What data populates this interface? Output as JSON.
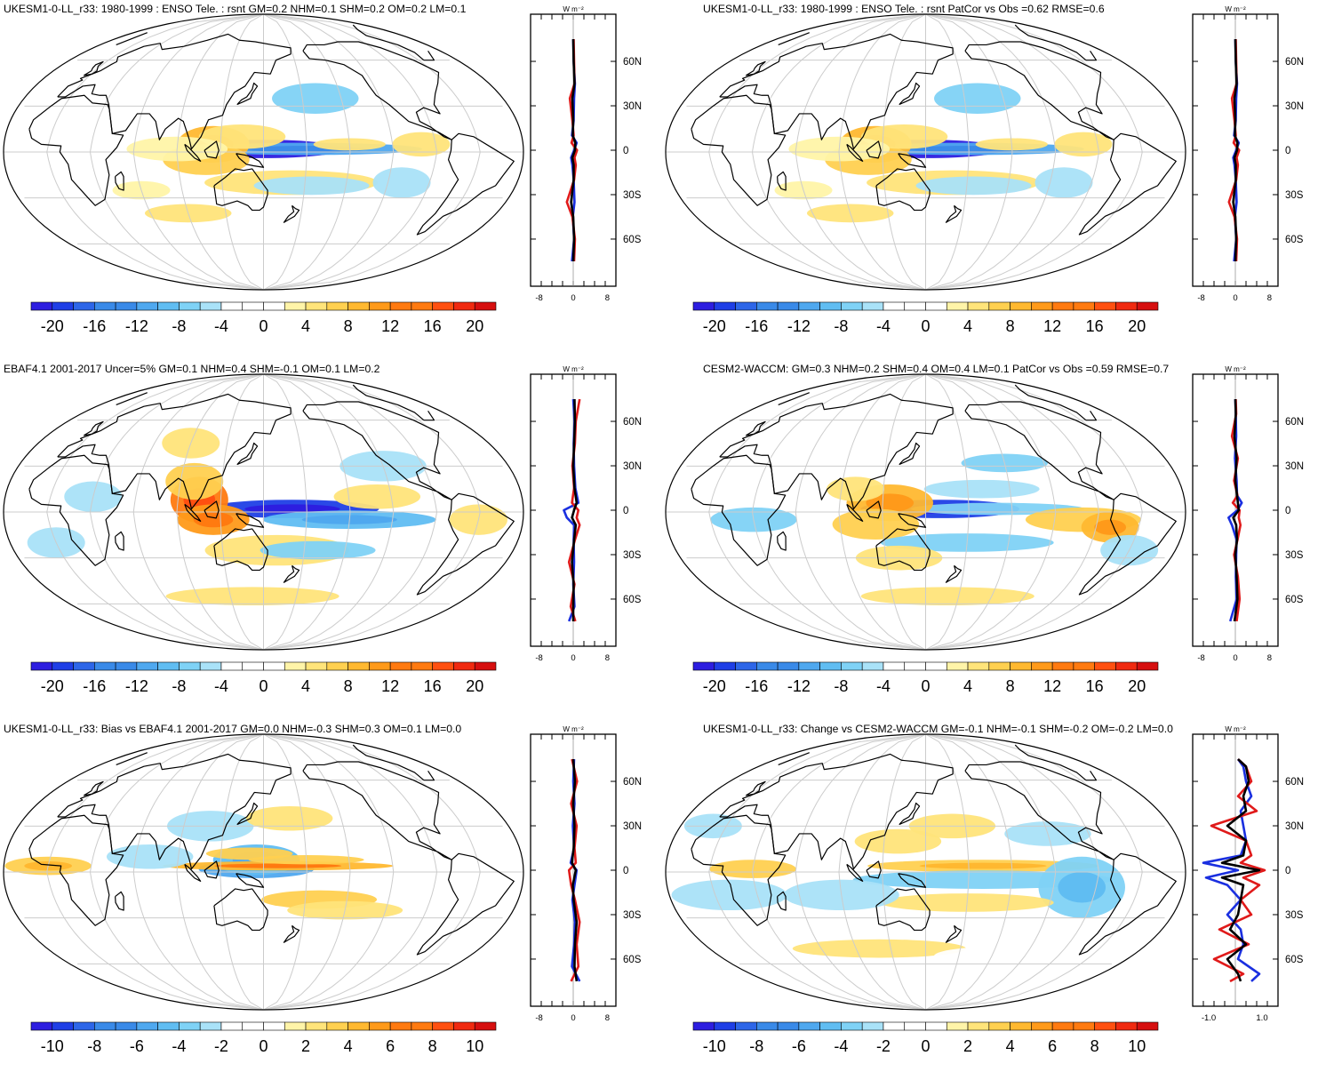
{
  "colorbar_colors": [
    "#2d1ee0",
    "#1f3fe6",
    "#2d66e8",
    "#3a8ae8",
    "#4fa8ef",
    "#60bdf2",
    "#7fd2f6",
    "#a9e2f8",
    "#ffffff",
    "#ffffff",
    "#fff4a8",
    "#ffe47a",
    "#ffd050",
    "#ffb830",
    "#ff9a1a",
    "#ff7a10",
    "#ff5010",
    "#f02a10",
    "#d60f0f"
  ],
  "colors": {
    "blue_zonal": "#1a2fe0",
    "red_zonal": "#e01a1a",
    "black_zonal": "#000000",
    "coast": "#000000",
    "grid": "#cccccc"
  },
  "zonal_unit": "W m⁻²",
  "lat_labels": [
    "60N",
    "30N",
    "0",
    "30S",
    "60S"
  ],
  "panels": [
    {
      "id": "ukesm-enso",
      "title": "UKESM1-0-LL_r33: 1980-1999 : ENSO Tele. : rsnt GM=0.2 NHM=0.1 SHM=0.2 OM=0.2 LM=0.1",
      "colorbar_labels": [
        "-20",
        "-16",
        "-12",
        "-8",
        "-4",
        "0",
        "4",
        "8",
        "12",
        "16",
        "20"
      ],
      "zonal_xlabels": [
        "-8",
        "0",
        "8"
      ]
    },
    {
      "id": "ukesm-enso-patcor",
      "title": "UKESM1-0-LL_r33: 1980-1999 : ENSO Tele. : rsnt PatCor vs Obs =0.62 RMSE=0.6",
      "colorbar_labels": [
        "-20",
        "-16",
        "-12",
        "-8",
        "-4",
        "0",
        "4",
        "8",
        "12",
        "16",
        "20"
      ],
      "zonal_xlabels": [
        "-8",
        "0",
        "8"
      ]
    },
    {
      "id": "ebaf-obs",
      "title": "EBAF4.1 2001-2017 Uncer=5% GM=0.1 NHM=0.4 SHM=-0.1 OM=0.1 LM=0.2",
      "colorbar_labels": [
        "-20",
        "-16",
        "-12",
        "-8",
        "-4",
        "0",
        "4",
        "8",
        "12",
        "16",
        "20"
      ],
      "zonal_xlabels": [
        "-8",
        "0",
        "8"
      ]
    },
    {
      "id": "cesm2-waccm",
      "title": "CESM2-WACCM: GM=0.3 NHM=0.2 SHM=0.4 OM=0.4 LM=0.1 PatCor vs Obs =0.59 RMSE=0.7",
      "colorbar_labels": [
        "-20",
        "-16",
        "-12",
        "-8",
        "-4",
        "0",
        "4",
        "8",
        "12",
        "16",
        "20"
      ],
      "zonal_xlabels": [
        "-8",
        "0",
        "8"
      ]
    },
    {
      "id": "bias-vs-ebaf",
      "title": "UKESM1-0-LL_r33: Bias vs EBAF4.1 2001-2017 GM=0.0 NHM=-0.3 SHM=0.3 OM=0.1 LM=0.0",
      "colorbar_labels": [
        "-10",
        "-8",
        "-6",
        "-4",
        "-2",
        "0",
        "2",
        "4",
        "6",
        "8",
        "10"
      ],
      "zonal_xlabels": [
        "-8",
        "0",
        "8"
      ]
    },
    {
      "id": "change-vs-cesm2",
      "title": "UKESM1-0-LL_r33: Change vs CESM2-WACCM GM=-0.1 NHM=-0.1 SHM=-0.2 OM=-0.2 LM=0.0",
      "colorbar_labels": [
        "-10",
        "-8",
        "-6",
        "-4",
        "-2",
        "0",
        "2",
        "4",
        "6",
        "8",
        "10"
      ],
      "zonal_xlabels": [
        "-1.0",
        "1.0"
      ]
    }
  ],
  "chart_data": [
    {
      "type": "heatmap",
      "title": "UKESM1-0-LL_r33: 1980-1999 : ENSO Tele. : rsnt GM=0.2 NHM=0.1 SHM=0.2 OM=0.2 LM=0.1",
      "projection": "Robinson",
      "colorbar_range": [
        -20,
        20
      ],
      "colorbar_step": 2,
      "zonal_mean": {
        "type": "line",
        "ylim": [
          -90,
          90
        ],
        "xlim": [
          -10,
          10
        ],
        "xticks": [
          -8,
          0,
          8
        ],
        "lat": [
          -75,
          -60,
          -45,
          -35,
          -20,
          -10,
          -5,
          0,
          5,
          10,
          20,
          35,
          45,
          60,
          75
        ],
        "series": [
          {
            "values": [
              -0.3,
              0.2,
              -0.1,
              0.3,
              0.1,
              -0.2,
              -0.5,
              0.2,
              0.8,
              -0.3,
              0.1,
              0.2,
              0.4,
              0.1,
              0.0
            ]
          },
          {
            "values": [
              0.2,
              0.4,
              -0.2,
              -1.5,
              0.2,
              0.6,
              0.3,
              0.9,
              -0.4,
              0.1,
              -0.2,
              -0.8,
              0.3,
              0.2,
              0.1
            ]
          },
          {
            "values": [
              0.0,
              0.2,
              0.0,
              -0.5,
              0.1,
              0.1,
              -0.2,
              0.4,
              0.5,
              -0.1,
              0.0,
              -0.2,
              0.3,
              0.1,
              0.0
            ]
          }
        ]
      }
    },
    {
      "type": "heatmap",
      "title": "UKESM1-0-LL_r33: 1980-1999 : ENSO Tele. : rsnt PatCor vs Obs =0.62 RMSE=0.6",
      "projection": "Robinson",
      "colorbar_range": [
        -20,
        20
      ],
      "colorbar_step": 2,
      "zonal_mean": {
        "type": "line",
        "ylim": [
          -90,
          90
        ],
        "xlim": [
          -10,
          10
        ],
        "xticks": [
          -8,
          0,
          8
        ],
        "lat": [
          -75,
          -60,
          -45,
          -35,
          -20,
          -10,
          -5,
          0,
          5,
          10,
          20,
          35,
          45,
          60,
          75
        ],
        "series": [
          {
            "values": [
              -0.3,
              0.2,
              -0.1,
              0.3,
              0.1,
              -0.2,
              -0.5,
              0.2,
              0.8,
              -0.3,
              0.1,
              0.2,
              0.4,
              0.1,
              0.0
            ]
          },
          {
            "values": [
              0.2,
              0.4,
              -0.2,
              -1.5,
              0.2,
              0.6,
              0.3,
              0.9,
              -0.4,
              0.1,
              -0.2,
              -0.8,
              0.3,
              0.2,
              0.1
            ]
          },
          {
            "values": [
              0.0,
              0.2,
              0.0,
              -0.5,
              0.1,
              0.1,
              -0.2,
              0.4,
              0.5,
              -0.1,
              0.0,
              -0.2,
              0.3,
              0.1,
              0.0
            ]
          }
        ]
      }
    },
    {
      "type": "heatmap",
      "title": "EBAF4.1 2001-2017 Uncer=5% GM=0.1 NHM=0.4 SHM=-0.1 OM=0.1 LM=0.2",
      "projection": "Robinson",
      "colorbar_range": [
        -20,
        20
      ],
      "colorbar_step": 2,
      "zonal_mean": {
        "type": "line",
        "ylim": [
          -90,
          90
        ],
        "xlim": [
          -10,
          10
        ],
        "xticks": [
          -8,
          0,
          8
        ],
        "lat": [
          -75,
          -65,
          -50,
          -35,
          -20,
          -10,
          -5,
          0,
          5,
          15,
          30,
          45,
          60,
          75
        ],
        "series": [
          {
            "values": [
              -1.0,
              0.3,
              0.0,
              0.2,
              0.1,
              0.2,
              -1.5,
              -2.2,
              1.2,
              0.5,
              0.2,
              0.1,
              0.3,
              0.0
            ]
          },
          {
            "values": [
              0.5,
              -0.6,
              0.3,
              -1.0,
              0.4,
              1.5,
              0.8,
              1.2,
              -0.3,
              0.2,
              -0.2,
              0.4,
              0.6,
              1.5
            ]
          },
          {
            "values": [
              0.0,
              0.0,
              0.1,
              -0.3,
              0.2,
              0.6,
              -0.3,
              0.2,
              0.8,
              0.3,
              0.0,
              0.2,
              0.4,
              0.3
            ]
          }
        ]
      }
    },
    {
      "type": "heatmap",
      "title": "CESM2-WACCM: GM=0.3 NHM=0.2 SHM=0.4 OM=0.4 LM=0.1 PatCor vs Obs =0.59 RMSE=0.7",
      "projection": "Robinson",
      "colorbar_range": [
        -20,
        20
      ],
      "colorbar_step": 2,
      "zonal_mean": {
        "type": "line",
        "ylim": [
          -90,
          90
        ],
        "xlim": [
          -10,
          10
        ],
        "xticks": [
          -8,
          0,
          8
        ],
        "lat": [
          -75,
          -60,
          -45,
          -30,
          -20,
          -10,
          -5,
          0,
          5,
          10,
          20,
          35,
          50,
          65,
          75
        ],
        "series": [
          {
            "values": [
              -1.2,
              0.3,
              0.1,
              0.2,
              0.3,
              -0.8,
              -1.6,
              0.5,
              1.5,
              0.4,
              0.3,
              -0.1,
              0.2,
              0.1,
              0.0
            ]
          },
          {
            "values": [
              0.3,
              1.0,
              0.6,
              -0.3,
              0.5,
              1.2,
              0.8,
              1.0,
              -0.6,
              0.5,
              -0.3,
              0.6,
              -0.8,
              0.2,
              0.1
            ]
          },
          {
            "values": [
              -0.2,
              0.5,
              0.3,
              0.0,
              0.4,
              0.2,
              -0.5,
              0.8,
              0.6,
              0.4,
              0.0,
              0.3,
              -0.2,
              0.1,
              0.0
            ]
          }
        ]
      }
    },
    {
      "type": "heatmap",
      "title": "UKESM1-0-LL_r33: Bias vs EBAF4.1 2001-2017 GM=0.0 NHM=-0.3 SHM=0.3 OM=0.1 LM=0.0",
      "projection": "Robinson",
      "colorbar_range": [
        -10,
        10
      ],
      "colorbar_step": 1,
      "zonal_mean": {
        "type": "line",
        "ylim": [
          -90,
          90
        ],
        "xlim": [
          -10,
          10
        ],
        "xticks": [
          -8,
          0,
          8
        ],
        "lat": [
          -75,
          -65,
          -50,
          -35,
          -20,
          -10,
          0,
          5,
          15,
          30,
          45,
          60,
          75
        ],
        "series": [
          {
            "values": [
              1.5,
              -0.3,
              0.2,
              0.4,
              -0.2,
              0.3,
              0.8,
              -0.6,
              0.2,
              -0.1,
              0.3,
              0.0,
              0.2
            ]
          },
          {
            "values": [
              -0.5,
              1.2,
              0.8,
              1.5,
              0.4,
              -0.5,
              -1.0,
              0.6,
              0.3,
              0.8,
              -0.5,
              0.9,
              -0.3
            ]
          },
          {
            "values": [
              0.8,
              0.3,
              0.4,
              0.8,
              0.1,
              -0.1,
              0.6,
              -0.3,
              0.1,
              0.3,
              0.0,
              0.4,
              0.0
            ]
          }
        ]
      }
    },
    {
      "type": "heatmap",
      "title": "UKESM1-0-LL_r33: Change vs CESM2-WACCM GM=-0.1 NHM=-0.1 SHM=-0.2 OM=-0.2 LM=0.0",
      "projection": "Robinson",
      "colorbar_range": [
        -10,
        10
      ],
      "colorbar_step": 1,
      "zonal_mean": {
        "type": "line",
        "ylim": [
          -90,
          90
        ],
        "xlim": [
          -1.6,
          1.6
        ],
        "xticks": [
          -1.0,
          1.0
        ],
        "lat": [
          -75,
          -70,
          -60,
          -50,
          -40,
          -30,
          -20,
          -10,
          -5,
          0,
          5,
          10,
          20,
          30,
          40,
          50,
          60,
          70,
          75
        ],
        "series": [
          {
            "values": [
              0.6,
              0.9,
              0.1,
              0.3,
              0.2,
              -0.3,
              0.2,
              -0.3,
              -1.1,
              0.1,
              -1.2,
              0.2,
              0.4,
              0.3,
              0.2,
              0.6,
              0.4,
              0.3,
              0.1
            ]
          },
          {
            "values": [
              -0.2,
              0.3,
              -0.8,
              0.5,
              -0.6,
              0.6,
              0.2,
              0.9,
              0.3,
              1.1,
              0.2,
              0.6,
              0.4,
              -0.9,
              0.8,
              0.1,
              0.6,
              0.4,
              0.1
            ]
          },
          {
            "values": [
              0.2,
              0.1,
              -0.3,
              0.4,
              -0.2,
              0.1,
              0.2,
              0.3,
              -0.5,
              0.9,
              -0.5,
              0.3,
              0.4,
              -0.3,
              0.4,
              0.3,
              0.5,
              0.4,
              0.1
            ]
          }
        ]
      }
    }
  ]
}
